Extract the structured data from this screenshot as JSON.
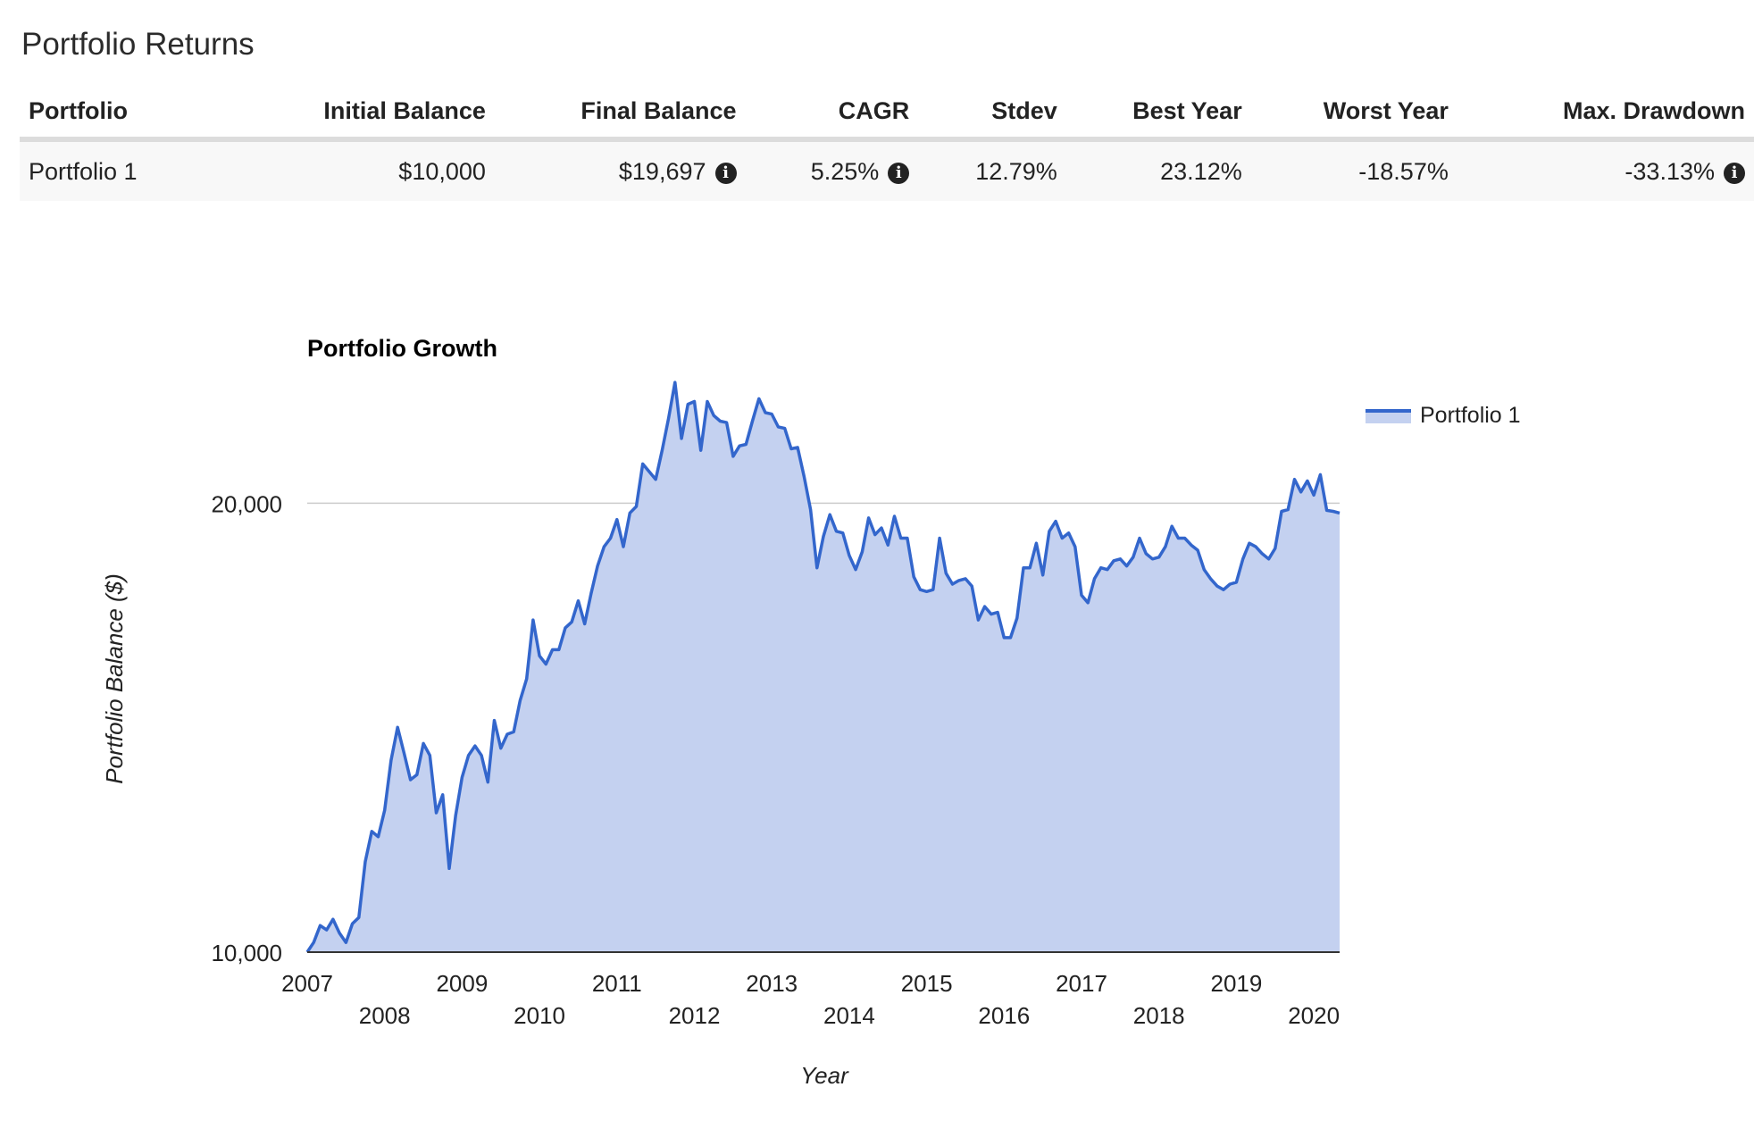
{
  "section_title": "Portfolio Returns",
  "table": {
    "headers": [
      "Portfolio",
      "Initial Balance",
      "Final Balance",
      "CAGR",
      "Stdev",
      "Best Year",
      "Worst Year",
      "Max. Drawdown"
    ],
    "rows": [
      {
        "portfolio": "Portfolio 1",
        "initial_balance": "$10,000",
        "final_balance": "$19,697",
        "cagr": "5.25%",
        "stdev": "12.79%",
        "best_year": "23.12%",
        "worst_year": "-18.57%",
        "max_drawdown": "-33.13%"
      }
    ]
  },
  "info_icon": {
    "name": "info-circle-icon",
    "glyph": "i"
  },
  "chart_data": {
    "type": "area",
    "title": "Portfolio Growth",
    "xlabel": "Year",
    "ylabel": "Portfolio Balance ($)",
    "y_scale": "log",
    "ylim": [
      10000,
      23000
    ],
    "xlim": [
      2007.0,
      2020.333
    ],
    "y_ticks": [
      10000,
      20000
    ],
    "y_tick_labels": [
      "10,000",
      "20,000"
    ],
    "x_ticks": [
      "2007",
      "2008",
      "2009",
      "2010",
      "2011",
      "2012",
      "2013",
      "2014",
      "2015",
      "2016",
      "2017",
      "2018",
      "2019",
      "2020"
    ],
    "grid": "horizontal",
    "legend": "top-right",
    "colors": {
      "line": "#3366cc",
      "fill": "#c4d1f0",
      "grid": "#cccccc",
      "axis": "#333333"
    },
    "series": [
      {
        "name": "Portfolio 1",
        "points": [
          [
            "2007-01",
            10000
          ],
          [
            "2007-02",
            10150
          ],
          [
            "2007-03",
            10420
          ],
          [
            "2007-04",
            10350
          ],
          [
            "2007-05",
            10520
          ],
          [
            "2007-06",
            10300
          ],
          [
            "2007-07",
            10150
          ],
          [
            "2007-08",
            10450
          ],
          [
            "2007-09",
            10550
          ],
          [
            "2007-10",
            11500
          ],
          [
            "2007-11",
            12050
          ],
          [
            "2007-12",
            11950
          ],
          [
            "2008-01",
            12450
          ],
          [
            "2008-02",
            13450
          ],
          [
            "2008-03",
            14150
          ],
          [
            "2008-04",
            13600
          ],
          [
            "2008-05",
            13050
          ],
          [
            "2008-06",
            13150
          ],
          [
            "2008-07",
            13800
          ],
          [
            "2008-08",
            13550
          ],
          [
            "2008-09",
            12400
          ],
          [
            "2008-10",
            12750
          ],
          [
            "2008-11",
            11380
          ],
          [
            "2008-12",
            12350
          ],
          [
            "2009-01",
            13100
          ],
          [
            "2009-02",
            13550
          ],
          [
            "2009-03",
            13750
          ],
          [
            "2009-04",
            13550
          ],
          [
            "2009-05",
            13000
          ],
          [
            "2009-06",
            14300
          ],
          [
            "2009-07",
            13700
          ],
          [
            "2009-08",
            14000
          ],
          [
            "2009-09",
            14050
          ],
          [
            "2009-10",
            14750
          ],
          [
            "2009-11",
            15250
          ],
          [
            "2009-12",
            16700
          ],
          [
            "2010-01",
            15800
          ],
          [
            "2010-02",
            15600
          ],
          [
            "2010-03",
            15950
          ],
          [
            "2010-04",
            15950
          ],
          [
            "2010-05",
            16500
          ],
          [
            "2010-06",
            16650
          ],
          [
            "2010-07",
            17200
          ],
          [
            "2010-08",
            16600
          ],
          [
            "2010-09",
            17400
          ],
          [
            "2010-10",
            18150
          ],
          [
            "2010-11",
            18700
          ],
          [
            "2010-12",
            18950
          ],
          [
            "2011-01",
            19500
          ],
          [
            "2011-02",
            18700
          ],
          [
            "2011-03",
            19700
          ],
          [
            "2011-04",
            19900
          ],
          [
            "2011-05",
            21250
          ],
          [
            "2011-06",
            21000
          ],
          [
            "2011-07",
            20750
          ],
          [
            "2011-08",
            21700
          ],
          [
            "2011-09",
            22800
          ],
          [
            "2011-10",
            24100
          ],
          [
            "2011-11",
            22100
          ],
          [
            "2011-12",
            23300
          ],
          [
            "2012-01",
            23400
          ],
          [
            "2012-02",
            21700
          ],
          [
            "2012-03",
            23400
          ],
          [
            "2012-04",
            22900
          ],
          [
            "2012-05",
            22700
          ],
          [
            "2012-06",
            22650
          ],
          [
            "2012-07",
            21500
          ],
          [
            "2012-08",
            21850
          ],
          [
            "2012-09",
            21900
          ],
          [
            "2012-10",
            22700
          ],
          [
            "2012-11",
            23500
          ],
          [
            "2012-12",
            23000
          ],
          [
            "2013-01",
            22950
          ],
          [
            "2013-02",
            22500
          ],
          [
            "2013-03",
            22450
          ],
          [
            "2013-04",
            21750
          ],
          [
            "2013-05",
            21800
          ],
          [
            "2013-06",
            20850
          ],
          [
            "2013-07",
            19800
          ],
          [
            "2013-08",
            18100
          ],
          [
            "2013-09",
            19000
          ],
          [
            "2013-10",
            19650
          ],
          [
            "2013-11",
            19150
          ],
          [
            "2013-12",
            19100
          ],
          [
            "2014-01",
            18450
          ],
          [
            "2014-02",
            18050
          ],
          [
            "2014-03",
            18550
          ],
          [
            "2014-04",
            19550
          ],
          [
            "2014-05",
            19050
          ],
          [
            "2014-06",
            19250
          ],
          [
            "2014-07",
            18750
          ],
          [
            "2014-08",
            19600
          ],
          [
            "2014-09",
            18950
          ],
          [
            "2014-10",
            18950
          ],
          [
            "2014-11",
            17850
          ],
          [
            "2014-12",
            17500
          ],
          [
            "2015-01",
            17450
          ],
          [
            "2015-02",
            17500
          ],
          [
            "2015-03",
            18950
          ],
          [
            "2015-04",
            17950
          ],
          [
            "2015-05",
            17650
          ],
          [
            "2015-06",
            17750
          ],
          [
            "2015-07",
            17800
          ],
          [
            "2015-08",
            17600
          ],
          [
            "2015-09",
            16700
          ],
          [
            "2015-10",
            17050
          ],
          [
            "2015-11",
            16850
          ],
          [
            "2015-12",
            16900
          ],
          [
            "2016-01",
            16250
          ],
          [
            "2016-02",
            16250
          ],
          [
            "2016-03",
            16750
          ],
          [
            "2016-04",
            18100
          ],
          [
            "2016-05",
            18100
          ],
          [
            "2016-06",
            18800
          ],
          [
            "2016-07",
            17900
          ],
          [
            "2016-08",
            19150
          ],
          [
            "2016-09",
            19450
          ],
          [
            "2016-10",
            18950
          ],
          [
            "2016-11",
            19100
          ],
          [
            "2016-12",
            18700
          ],
          [
            "2017-01",
            17350
          ],
          [
            "2017-02",
            17150
          ],
          [
            "2017-03",
            17800
          ],
          [
            "2017-04",
            18100
          ],
          [
            "2017-05",
            18050
          ],
          [
            "2017-06",
            18300
          ],
          [
            "2017-07",
            18350
          ],
          [
            "2017-08",
            18150
          ],
          [
            "2017-09",
            18400
          ],
          [
            "2017-10",
            18950
          ],
          [
            "2017-11",
            18500
          ],
          [
            "2017-12",
            18350
          ],
          [
            "2018-01",
            18400
          ],
          [
            "2018-02",
            18700
          ],
          [
            "2018-03",
            19300
          ],
          [
            "2018-04",
            18950
          ],
          [
            "2018-05",
            18950
          ],
          [
            "2018-06",
            18750
          ],
          [
            "2018-07",
            18600
          ],
          [
            "2018-08",
            18050
          ],
          [
            "2018-09",
            17800
          ],
          [
            "2018-10",
            17600
          ],
          [
            "2018-11",
            17500
          ],
          [
            "2018-12",
            17650
          ],
          [
            "2019-01",
            17700
          ],
          [
            "2019-02",
            18350
          ],
          [
            "2019-03",
            18800
          ],
          [
            "2019-04",
            18700
          ],
          [
            "2019-05",
            18500
          ],
          [
            "2019-06",
            18350
          ],
          [
            "2019-07",
            18650
          ],
          [
            "2019-08",
            19750
          ],
          [
            "2019-09",
            19800
          ],
          [
            "2019-10",
            20750
          ],
          [
            "2019-11",
            20350
          ],
          [
            "2019-12",
            20700
          ],
          [
            "2020-01",
            20250
          ],
          [
            "2020-02",
            20900
          ],
          [
            "2020-03",
            19780
          ],
          [
            "2020-04",
            19750
          ],
          [
            "2020-05",
            19697
          ]
        ]
      }
    ]
  }
}
